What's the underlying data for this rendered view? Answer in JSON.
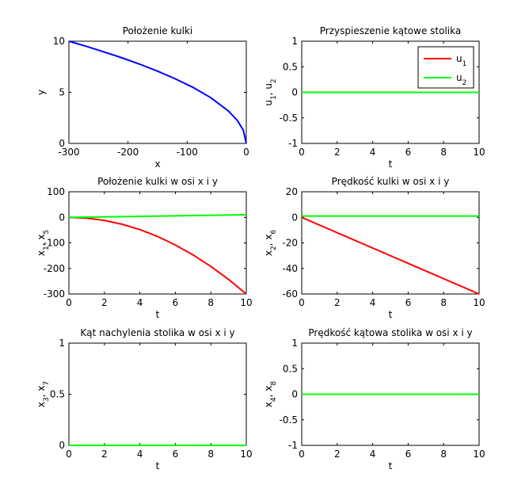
{
  "chart_data": [
    {
      "type": "line",
      "title": "Położenie kulki",
      "xlabel": "x",
      "ylabel": [
        {
          "t": "y"
        }
      ],
      "xlim": [
        -300,
        0
      ],
      "ylim": [
        0,
        10
      ],
      "xticks": [
        -300,
        -200,
        -100,
        0
      ],
      "xtick_labels": [
        "-300",
        "-200",
        "-100",
        "0"
      ],
      "yticks": [
        0,
        5,
        10
      ],
      "ytick_labels": [
        "0",
        "5",
        "10"
      ],
      "series": [
        {
          "color": "#0000ff",
          "x": [
            -300,
            -270,
            -240,
            -210,
            -180,
            -150,
            -120,
            -90,
            -60,
            -30,
            -15,
            -5,
            0
          ],
          "y": [
            10,
            9.49,
            8.94,
            8.37,
            7.75,
            7.07,
            6.32,
            5.48,
            4.47,
            3.16,
            2.24,
            1.29,
            0
          ]
        }
      ]
    },
    {
      "type": "line",
      "title": "Przyspieszenie kątowe stolika",
      "xlabel": "t",
      "ylabel": [
        {
          "t": "u"
        },
        {
          "t": "1",
          "sub": true
        },
        {
          "t": ", u"
        },
        {
          "t": "2",
          "sub": true
        }
      ],
      "xlim": [
        0,
        10
      ],
      "ylim": [
        -1,
        1
      ],
      "xticks": [
        0,
        2,
        4,
        6,
        8,
        10
      ],
      "xtick_labels": [
        "0",
        "2",
        "4",
        "6",
        "8",
        "10"
      ],
      "yticks": [
        -1,
        -0.5,
        0,
        0.5,
        1
      ],
      "ytick_labels": [
        "-1",
        "-0.5",
        "0",
        "0.5",
        "1"
      ],
      "legend": {
        "position": "top-right",
        "entries": [
          {
            "label": "u",
            "sub": "1",
            "color": "#ff0000"
          },
          {
            "label": "u",
            "sub": "2",
            "color": "#00ff00"
          }
        ]
      },
      "series": [
        {
          "name": "u1",
          "color": "#ff0000",
          "x": [
            0,
            10
          ],
          "y": [
            0,
            0
          ]
        },
        {
          "name": "u2",
          "color": "#00ff00",
          "x": [
            0,
            10
          ],
          "y": [
            0,
            0
          ]
        }
      ]
    },
    {
      "type": "line",
      "title": "Położenie kulki w osi x i y",
      "xlabel": "t",
      "ylabel": [
        {
          "t": "x"
        },
        {
          "t": "1",
          "sub": true
        },
        {
          "t": ", x"
        },
        {
          "t": "5",
          "sub": true
        }
      ],
      "xlim": [
        0,
        10
      ],
      "ylim": [
        -300,
        100
      ],
      "xticks": [
        0,
        2,
        4,
        6,
        8,
        10
      ],
      "xtick_labels": [
        "0",
        "2",
        "4",
        "6",
        "8",
        "10"
      ],
      "yticks": [
        -300,
        -200,
        -100,
        0,
        100
      ],
      "ytick_labels": [
        "-300",
        "-200",
        "-100",
        "0",
        "100"
      ],
      "series": [
        {
          "color": "#ff0000",
          "x": [
            0,
            1,
            2,
            3,
            4,
            5,
            6,
            7,
            8,
            9,
            10
          ],
          "y": [
            0,
            -3,
            -12,
            -27,
            -48,
            -75,
            -108,
            -147,
            -192,
            -243,
            -300
          ]
        },
        {
          "color": "#00ff00",
          "x": [
            0,
            10
          ],
          "y": [
            0,
            10
          ]
        }
      ]
    },
    {
      "type": "line",
      "title": "Prędkość kulki w osi x i y",
      "xlabel": "t",
      "ylabel": [
        {
          "t": "x"
        },
        {
          "t": "2",
          "sub": true
        },
        {
          "t": ", x"
        },
        {
          "t": "6",
          "sub": true
        }
      ],
      "xlim": [
        0,
        10
      ],
      "ylim": [
        -60,
        20
      ],
      "xticks": [
        0,
        2,
        4,
        6,
        8,
        10
      ],
      "xtick_labels": [
        "0",
        "2",
        "4",
        "6",
        "8",
        "10"
      ],
      "yticks": [
        -60,
        -40,
        -20,
        0,
        20
      ],
      "ytick_labels": [
        "-60",
        "-40",
        "-20",
        "0",
        "20"
      ],
      "series": [
        {
          "color": "#ff0000",
          "x": [
            0,
            10
          ],
          "y": [
            0,
            -60
          ]
        },
        {
          "color": "#00ff00",
          "x": [
            0,
            10
          ],
          "y": [
            1,
            1
          ]
        }
      ]
    },
    {
      "type": "line",
      "title": "Kąt nachylenia stolika w osi x i y",
      "xlabel": "t",
      "ylabel": [
        {
          "t": "x"
        },
        {
          "t": "3",
          "sub": true
        },
        {
          "t": ", x"
        },
        {
          "t": "7",
          "sub": true
        }
      ],
      "xlim": [
        0,
        10
      ],
      "ylim": [
        0,
        1
      ],
      "xticks": [
        0,
        2,
        4,
        6,
        8,
        10
      ],
      "xtick_labels": [
        "0",
        "2",
        "4",
        "6",
        "8",
        "10"
      ],
      "yticks": [
        0,
        0.5,
        1
      ],
      "ytick_labels": [
        "0",
        "0.5",
        "1"
      ],
      "series": [
        {
          "color": "#ff0000",
          "x": [
            0,
            10
          ],
          "y": [
            0,
            0
          ]
        },
        {
          "color": "#00ff00",
          "x": [
            0,
            10
          ],
          "y": [
            0,
            0
          ]
        }
      ]
    },
    {
      "type": "line",
      "title": "Prędkość kątowa stolika w osi x i y",
      "xlabel": "t",
      "ylabel": [
        {
          "t": "x"
        },
        {
          "t": "4",
          "sub": true
        },
        {
          "t": ", x"
        },
        {
          "t": "8",
          "sub": true
        }
      ],
      "xlim": [
        0,
        10
      ],
      "ylim": [
        -1,
        1
      ],
      "xticks": [
        0,
        2,
        4,
        6,
        8,
        10
      ],
      "xtick_labels": [
        "0",
        "2",
        "4",
        "6",
        "8",
        "10"
      ],
      "yticks": [
        -1,
        -0.5,
        0,
        0.5,
        1
      ],
      "ytick_labels": [
        "-1",
        "-0.5",
        "0",
        "0.5",
        "1"
      ],
      "series": [
        {
          "color": "#ff0000",
          "x": [
            0,
            10
          ],
          "y": [
            0,
            0
          ]
        },
        {
          "color": "#00ff00",
          "x": [
            0,
            10
          ],
          "y": [
            0,
            0
          ]
        }
      ]
    }
  ]
}
